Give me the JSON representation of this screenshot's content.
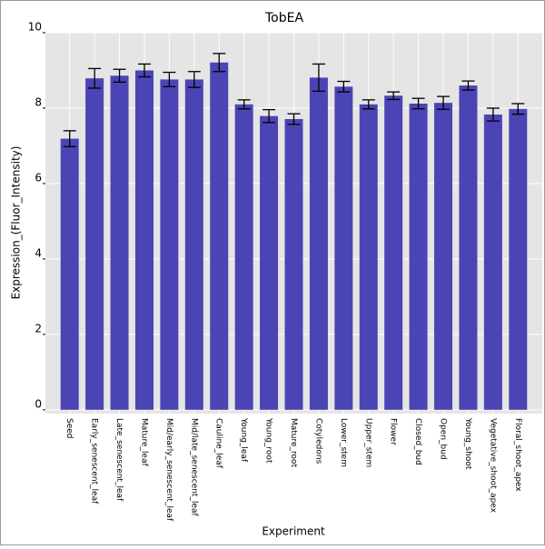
{
  "chart_data": {
    "type": "bar",
    "title": "TobEA",
    "x_label": "Experiment",
    "y_label": "Expression_(Fluor_Intensity)",
    "categories": [
      "Seed",
      "Early_senescent_leaf",
      "Late_senescent_leaf",
      "Mature_leaf",
      "Mid/early_senescent_leaf",
      "Mid/late_senescent_leaf",
      "Cauline_leaf",
      "Young_leaf",
      "Young_root",
      "Mature_root",
      "Cotyledons",
      "Lower_stem",
      "Upper_stem",
      "Flower",
      "Closed_bud",
      "Open_bud",
      "Young_shoot",
      "Vegetative_shoot_apex",
      "Floral_shoot_apex"
    ],
    "values": [
      7.19,
      8.79,
      8.86,
      9.0,
      8.76,
      8.76,
      9.21,
      8.1,
      7.79,
      7.71,
      8.81,
      8.57,
      8.1,
      8.33,
      8.12,
      8.14,
      8.6,
      7.83,
      7.98
    ],
    "errors": [
      0.21,
      0.26,
      0.17,
      0.17,
      0.19,
      0.21,
      0.24,
      0.12,
      0.17,
      0.14,
      0.36,
      0.14,
      0.12,
      0.1,
      0.14,
      0.17,
      0.12,
      0.17,
      0.14
    ],
    "color": "#4b44b4",
    "ylim": [
      -0.1,
      10
    ],
    "yticks": [
      0,
      2,
      4,
      6,
      8,
      10
    ],
    "grid": true
  }
}
